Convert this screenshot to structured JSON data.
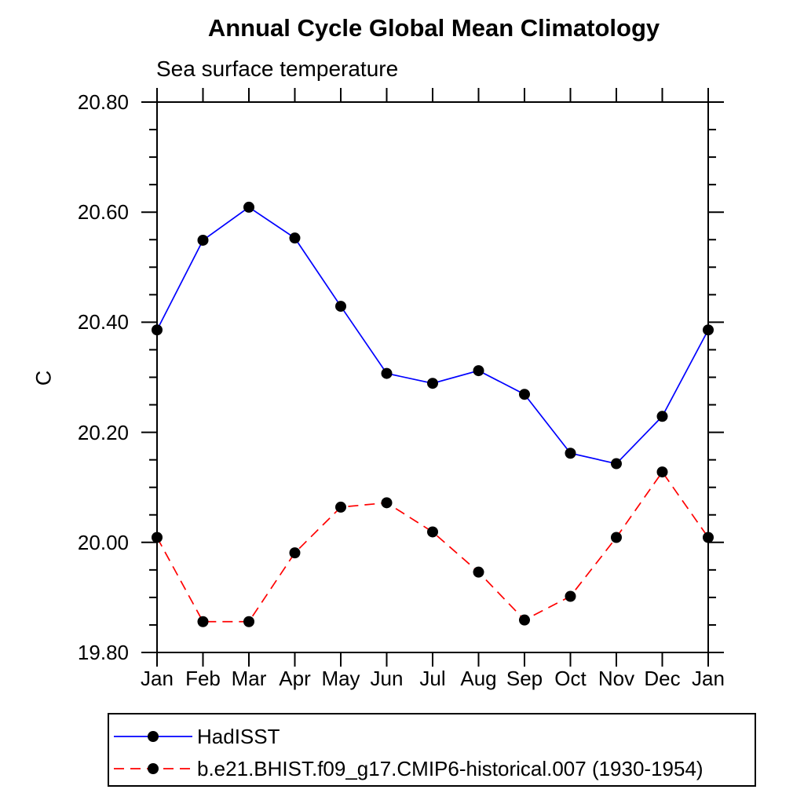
{
  "chart_data": {
    "type": "line",
    "title": "Annual Cycle Global Mean Climatology",
    "subtitle": "Sea surface temperature",
    "ylabel": "C",
    "xlabel": "",
    "categories": [
      "Jan",
      "Feb",
      "Mar",
      "Apr",
      "May",
      "Jun",
      "Jul",
      "Aug",
      "Sep",
      "Oct",
      "Nov",
      "Dec",
      "Jan"
    ],
    "ylim": [
      19.8,
      20.8
    ],
    "ytick_step": 0.2,
    "ytick_minor_step": 0.05,
    "ytick_labels": [
      "19.80",
      "20.00",
      "20.20",
      "20.40",
      "20.60",
      "20.80"
    ],
    "grid": false,
    "tick_direction": "out",
    "legend_position": "bottom-left",
    "marker": {
      "shape": "circle",
      "color": "#000000",
      "radius": 7
    },
    "axis_color": "#000000",
    "series": [
      {
        "name": "HadISST",
        "color": "#0000ff",
        "line_style": "solid",
        "values": [
          20.386,
          20.549,
          20.609,
          20.553,
          20.429,
          20.307,
          20.289,
          20.312,
          20.269,
          20.162,
          20.143,
          20.229,
          20.386
        ]
      },
      {
        "name": "b.e21.BHIST.f09_g17.CMIP6-historical.007 (1930-1954)",
        "color": "#ff0000",
        "line_style": "dashed",
        "values": [
          20.009,
          19.856,
          19.856,
          19.981,
          20.064,
          20.072,
          20.019,
          19.946,
          19.859,
          19.902,
          20.009,
          20.128,
          20.009
        ]
      }
    ]
  }
}
